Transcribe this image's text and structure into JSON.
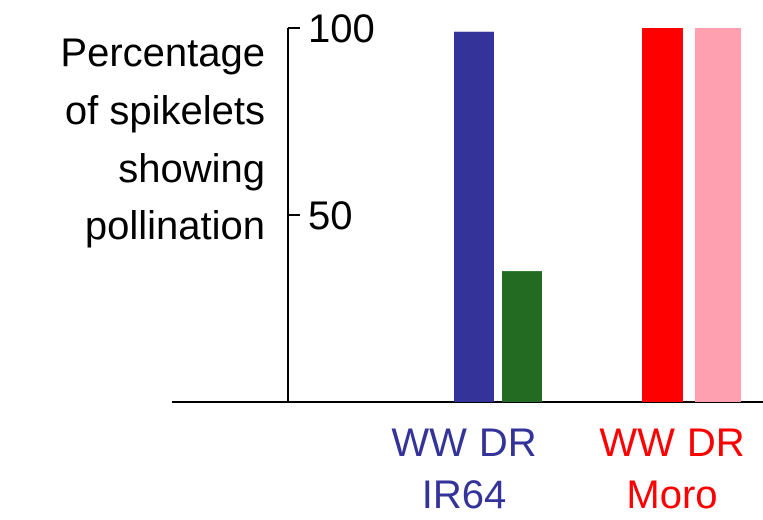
{
  "chart_data": {
    "type": "bar",
    "ylabel_lines": [
      "Percentage",
      "of  spikelets",
      "showing",
      "pollination"
    ],
    "ytick_labels": [
      "100",
      "50"
    ],
    "yticks": [
      100,
      50
    ],
    "ylim": [
      0,
      100
    ],
    "groups": [
      {
        "name": "IR64",
        "color": "#333399",
        "bars": [
          {
            "label": "WW",
            "value": 99,
            "color": "#333399"
          },
          {
            "label": "DR",
            "value": 35,
            "color": "#236b23"
          }
        ]
      },
      {
        "name": "Moro",
        "color": "#ff0000",
        "bars": [
          {
            "label": "WW",
            "value": 100,
            "color": "#ff0000"
          },
          {
            "label": "DR",
            "value": 100,
            "color": "#ffa0b0"
          }
        ]
      }
    ],
    "grid": false,
    "legend": "none"
  },
  "axis_color": "#000000"
}
